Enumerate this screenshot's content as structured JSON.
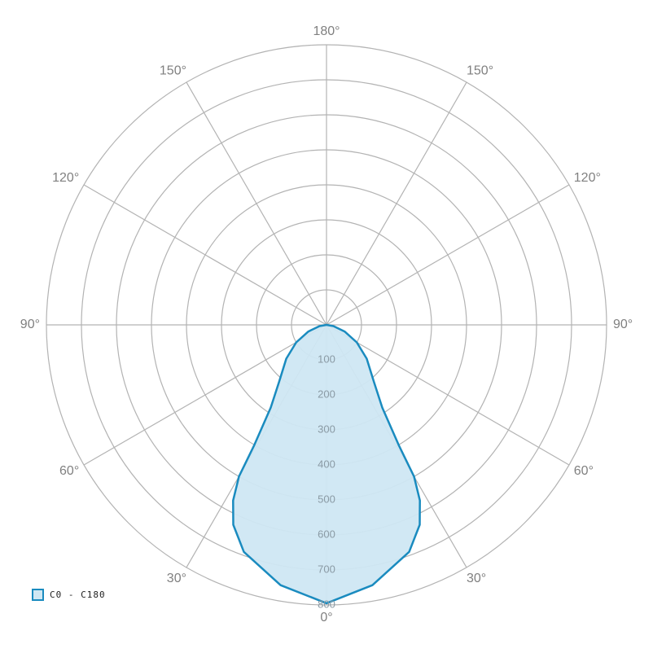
{
  "chart_data": {
    "type": "polar",
    "rlim": [
      0,
      800
    ],
    "rticks": [
      100,
      200,
      300,
      400,
      500,
      600,
      700,
      800
    ],
    "theta_ticks": [
      {
        "value": 0,
        "label": "0°"
      },
      {
        "value": 30,
        "label": "30°"
      },
      {
        "value": 60,
        "label": "60°"
      },
      {
        "value": 90,
        "label": "90°"
      },
      {
        "value": 120,
        "label": "120°"
      },
      {
        "value": 150,
        "label": "150°"
      },
      {
        "value": 180,
        "label": "180°"
      }
    ],
    "grid": true,
    "legend": "bottom-left",
    "series": [
      {
        "name": "C0 - C180",
        "color": "#1a8bbf",
        "fill": "#cfe7f3",
        "theta": [
          -90,
          -80,
          -70,
          -60,
          -50,
          -40,
          -34,
          -31,
          -30,
          -28,
          -25,
          -20,
          -10,
          0,
          10,
          20,
          25,
          28,
          30,
          31,
          34,
          40,
          50,
          60,
          70,
          80,
          90
        ],
        "values": [
          0,
          20,
          55,
          100,
          150,
          210,
          285,
          400,
          500,
          568,
          630,
          690,
          755,
          795,
          755,
          690,
          630,
          568,
          500,
          400,
          285,
          210,
          150,
          100,
          55,
          20,
          0
        ]
      }
    ]
  }
}
